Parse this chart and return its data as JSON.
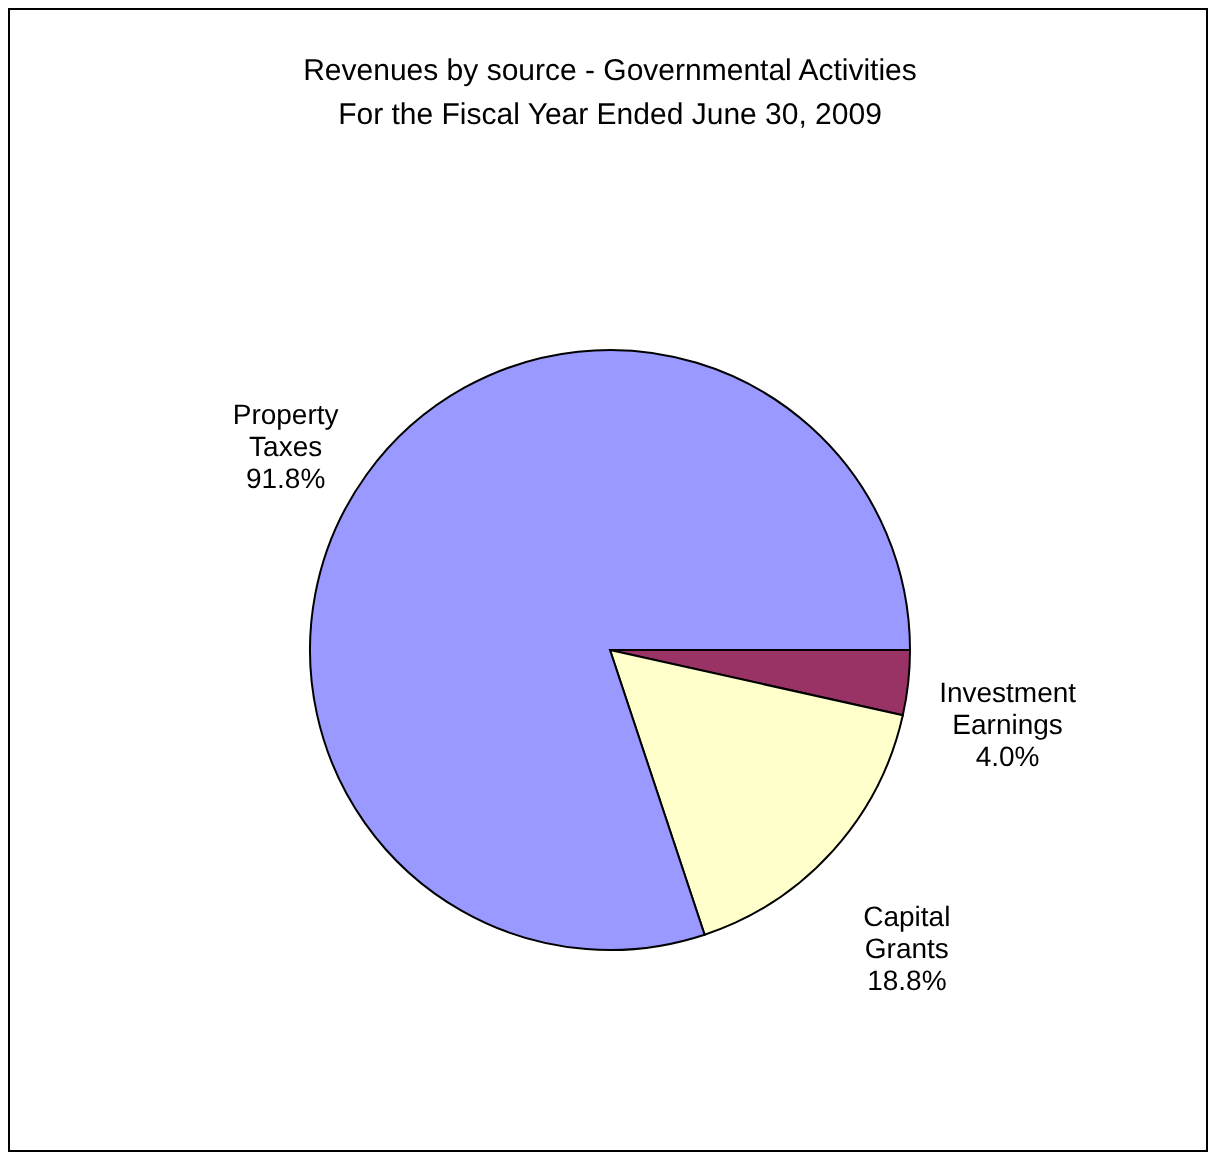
{
  "chart_data": {
    "type": "pie",
    "title": [
      "Revenues by source - Governmental Activities",
      "For the Fiscal Year Ended June 30, 2009"
    ],
    "categories": [
      "Investment Earnings",
      "Capital Grants",
      "Property Taxes"
    ],
    "values": [
      4.0,
      18.8,
      91.8
    ],
    "colors": [
      "#993366",
      "#ffffcc",
      "#9999ff"
    ],
    "value_labels": [
      "4.0%",
      "18.8%",
      "91.8%"
    ]
  }
}
